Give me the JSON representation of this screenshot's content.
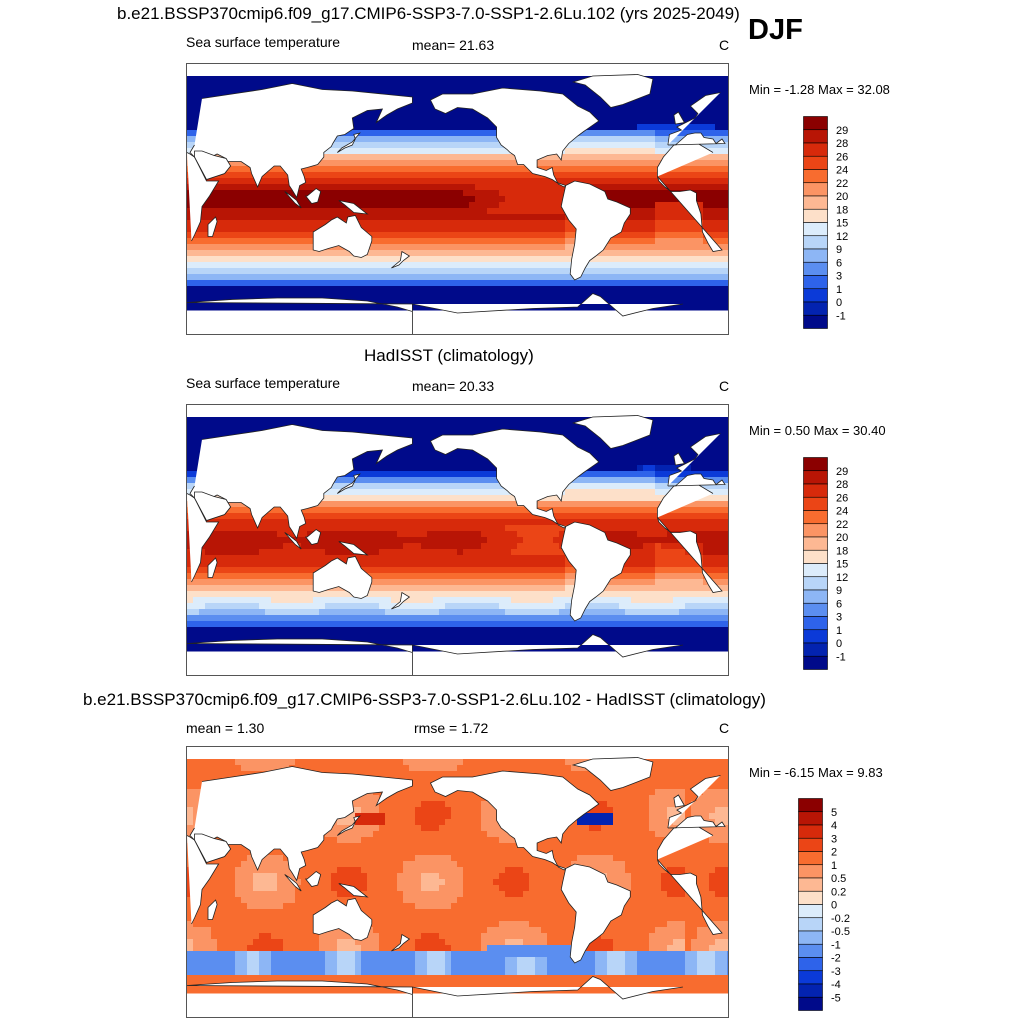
{
  "season": "DJF",
  "colors": {
    "land": "#ffffff",
    "coast": "#222222"
  },
  "panels": [
    {
      "title": "b.e21.BSSP370cmip6.f09_g17.CMIP6-SSP3-7.0-SSP1-2.6Lu.102 (yrs 2025-2049)",
      "left_text": "Sea surface temperature",
      "center_text": "mean=  21.63",
      "units": "C",
      "minmax": "Min =  -1.28 Max =  32.08",
      "field": "sst",
      "colorbar": {
        "labels": [
          "29",
          "28",
          "26",
          "24",
          "22",
          "20",
          "18",
          "15",
          "12",
          "9",
          "6",
          "3",
          "1",
          "0",
          "-1"
        ],
        "colors": [
          "#8b0000",
          "#b81505",
          "#d72a0b",
          "#eb4516",
          "#f86c2f",
          "#fb9464",
          "#fdb893",
          "#fde0c9",
          "#dcecfb",
          "#b8d5f8",
          "#8db6f5",
          "#5b8ef0",
          "#2e63ea",
          "#0b3ad8",
          "#0323b0",
          "#000a8a"
        ]
      }
    },
    {
      "title": "HadISST (climatology)",
      "left_text": "Sea surface temperature",
      "center_text": "mean=  20.33",
      "units": "C",
      "minmax": "Min =   0.50 Max =  30.40",
      "field": "sst_obs",
      "colorbar": {
        "labels": [
          "29",
          "28",
          "26",
          "24",
          "22",
          "20",
          "18",
          "15",
          "12",
          "9",
          "6",
          "3",
          "1",
          "0",
          "-1"
        ],
        "colors": [
          "#8b0000",
          "#b81505",
          "#d72a0b",
          "#eb4516",
          "#f86c2f",
          "#fb9464",
          "#fdb893",
          "#fde0c9",
          "#dcecfb",
          "#b8d5f8",
          "#8db6f5",
          "#5b8ef0",
          "#2e63ea",
          "#0b3ad8",
          "#0323b0",
          "#000a8a"
        ]
      }
    },
    {
      "title": "b.e21.BSSP370cmip6.f09_g17.CMIP6-SSP3-7.0-SSP1-2.6Lu.102 - HadISST (climatology)",
      "left_text": "mean =   1.30",
      "center_text": "rmse =   1.72",
      "units": "C",
      "minmax": "Min =  -6.15 Max =   9.83",
      "field": "diff",
      "colorbar": {
        "labels": [
          "5",
          "4",
          "3",
          "2",
          "1",
          "0.5",
          "0.2",
          "0",
          "-0.2",
          "-0.5",
          "-1",
          "-2",
          "-3",
          "-4",
          "-5"
        ],
        "colors": [
          "#8b0000",
          "#b81505",
          "#d72a0b",
          "#eb4516",
          "#f86c2f",
          "#fb9464",
          "#fdb893",
          "#fde0c9",
          "#dcecfb",
          "#b8d5f8",
          "#8db6f5",
          "#5b8ef0",
          "#2e63ea",
          "#0b3ad8",
          "#0323b0",
          "#000a8a"
        ]
      }
    }
  ],
  "chart_data": {
    "type": "heatmap",
    "projection": "cylindrical equidistant, 30E centred (lon 30 to 390)",
    "variable": "Sea surface temperature",
    "units": "C",
    "season": "DJF",
    "panels": [
      {
        "title": "b.e21.BSSP370cmip6.f09_g17.CMIP6-SSP3-7.0-SSP1-2.6Lu.102 (yrs 2025-2049)",
        "mean": 21.63,
        "min": -1.28,
        "max": 32.08,
        "levels": [
          -1,
          0,
          1,
          3,
          6,
          9,
          12,
          15,
          18,
          20,
          22,
          24,
          26,
          28,
          29
        ]
      },
      {
        "title": "HadISST (climatology)",
        "mean": 20.33,
        "min": 0.5,
        "max": 30.4,
        "levels": [
          -1,
          0,
          1,
          3,
          6,
          9,
          12,
          15,
          18,
          20,
          22,
          24,
          26,
          28,
          29
        ]
      },
      {
        "title": "b.e21.BSSP370cmip6.f09_g17.CMIP6-SSP3-7.0-SSP1-2.6Lu.102 - HadISST (climatology)",
        "mean": 1.3,
        "rmse": 1.72,
        "min": -6.15,
        "max": 9.83,
        "levels": [
          -5,
          -4,
          -3,
          -2,
          -1,
          -0.5,
          -0.2,
          0,
          0.2,
          0.5,
          1,
          2,
          3,
          4,
          5
        ]
      }
    ]
  }
}
